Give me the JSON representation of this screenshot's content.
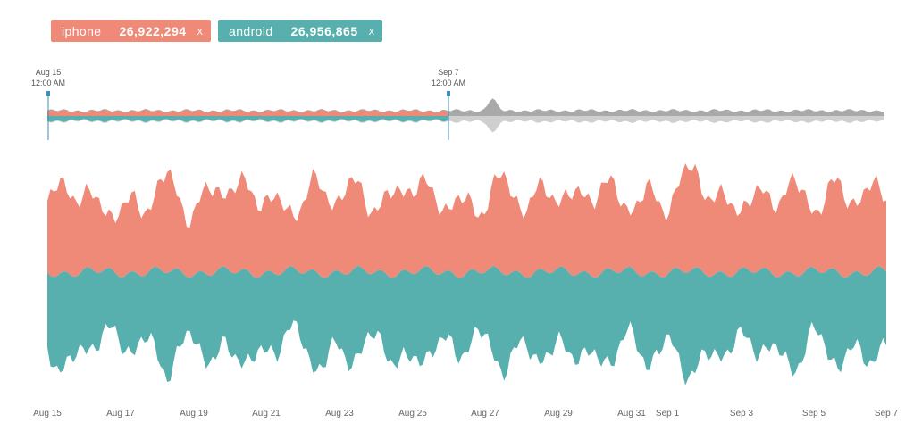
{
  "legend": [
    {
      "name": "iphone",
      "count": "26,922,294",
      "close": "x",
      "color": "#f08a78"
    },
    {
      "name": "android",
      "count": "26,956,865",
      "close": "x",
      "color": "#58b0ae"
    }
  ],
  "brush": {
    "start_label_date": "Aug 15",
    "start_label_time": "12:00 AM",
    "end_label_date": "Sep 7",
    "end_label_time": "12:00 AM",
    "handle_color": "#3d8fb6"
  },
  "chart_data": {
    "type": "area",
    "title": "",
    "xlabel": "",
    "ylabel": "",
    "x_ticks": [
      "Aug 15",
      "Aug 17",
      "Aug 19",
      "Aug 21",
      "Aug 23",
      "Aug 25",
      "Aug 27",
      "Aug 29",
      "Aug 31",
      "Sep 1",
      "Sep 3",
      "Sep 5",
      "Sep 7"
    ],
    "x_range": [
      "Aug 15",
      "Sep 7"
    ],
    "grid": false,
    "stacked": true,
    "series": [
      {
        "name": "iphone",
        "color": "#f08a78",
        "values": [
          55,
          62,
          50,
          58,
          48,
          64,
          52,
          70,
          56,
          60,
          50,
          66,
          54,
          62,
          58,
          68,
          50,
          60,
          54,
          64,
          50,
          70,
          56,
          62,
          52,
          66,
          54,
          72,
          58,
          60,
          50,
          64,
          56,
          68,
          52,
          60
        ]
      },
      {
        "name": "android",
        "color": "#58b0ae",
        "values": [
          58,
          66,
          52,
          60,
          50,
          70,
          54,
          72,
          56,
          64,
          52,
          68,
          56,
          64,
          58,
          72,
          52,
          62,
          56,
          66,
          52,
          74,
          58,
          64,
          54,
          70,
          56,
          74,
          60,
          62,
          52,
          66,
          58,
          70,
          54,
          62
        ]
      }
    ]
  }
}
